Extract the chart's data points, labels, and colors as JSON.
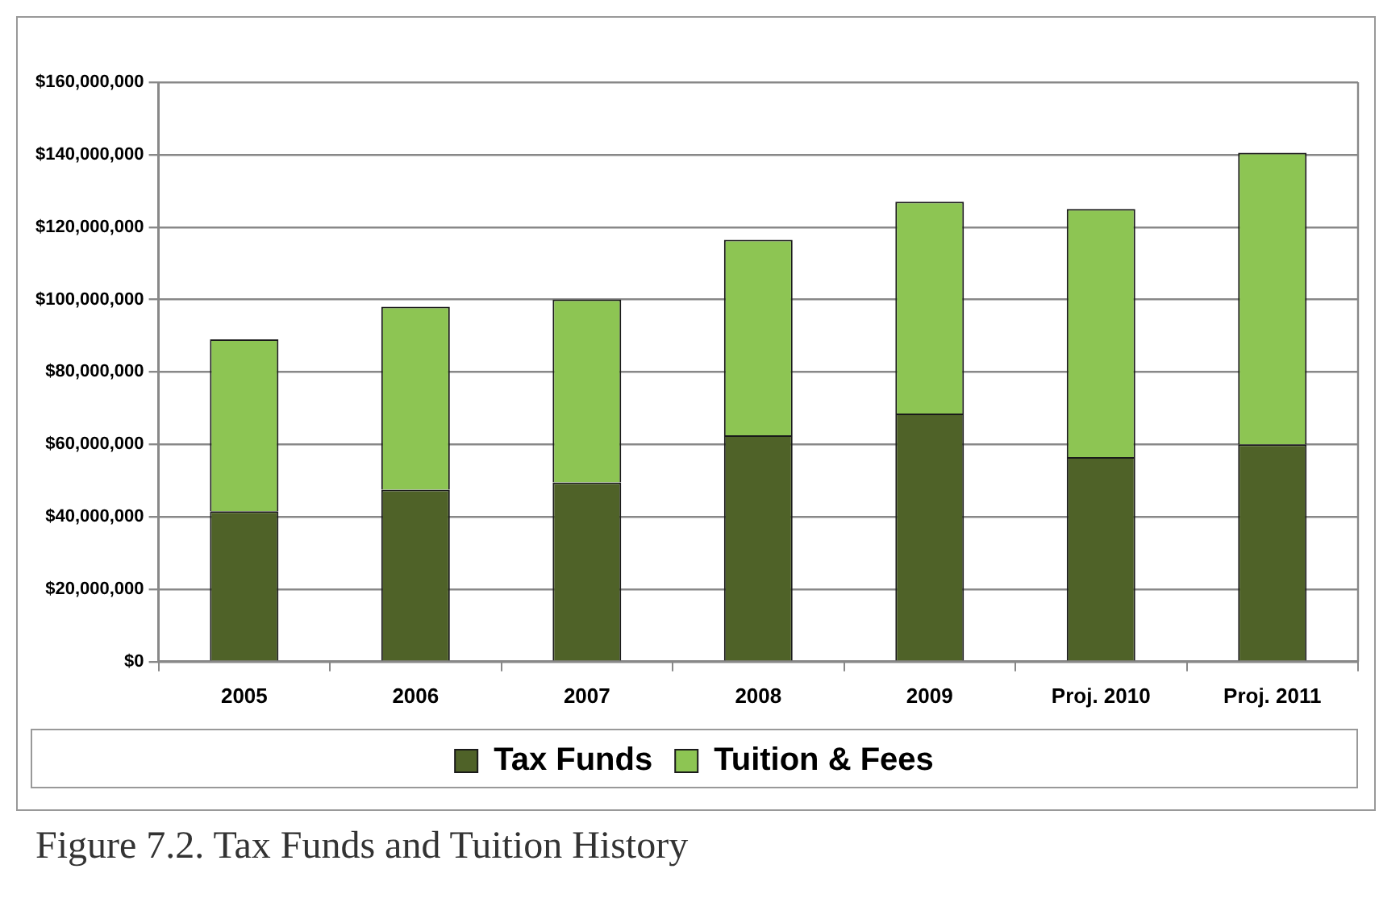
{
  "chart_data": {
    "type": "bar",
    "stacked": true,
    "categories": [
      "2005",
      "2006",
      "2007",
      "2008",
      "2009",
      "Proj. 2010",
      "Proj. 2011"
    ],
    "series": [
      {
        "name": "Tax Funds",
        "color": "#4f6228",
        "values": [
          41500000,
          47500000,
          49500000,
          62500000,
          68500000,
          56500000,
          60000000
        ]
      },
      {
        "name": "Tuition & Fees",
        "color": "#8dc553",
        "values": [
          47500000,
          50500000,
          50500000,
          54000000,
          58500000,
          68500000,
          80500000
        ]
      }
    ],
    "ylim": [
      0,
      160000000
    ],
    "yticks": [
      {
        "value": 0,
        "label": "$0"
      },
      {
        "value": 20000000,
        "label": "$20,000,000"
      },
      {
        "value": 40000000,
        "label": "$40,000,000"
      },
      {
        "value": 60000000,
        "label": "$60,000,000"
      },
      {
        "value": 80000000,
        "label": "$80,000,000"
      },
      {
        "value": 100000000,
        "label": "$100,000,000"
      },
      {
        "value": 120000000,
        "label": "$120,000,000"
      },
      {
        "value": 140000000,
        "label": "$140,000,000"
      },
      {
        "value": 160000000,
        "label": "$160,000,000"
      }
    ],
    "grid": "y",
    "legend": "bottom",
    "annotations": [
      "Figure 7.2. Tax Funds and Tuition History"
    ]
  }
}
